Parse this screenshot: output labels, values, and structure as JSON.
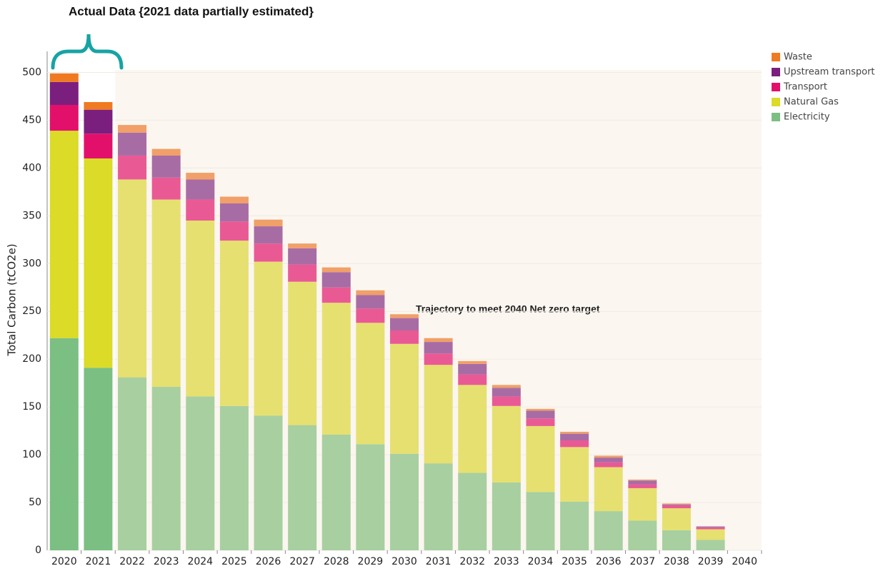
{
  "chart_data": {
    "type": "stacked_bar",
    "title": "Actual Data {2021 data partially estimated}",
    "annotation": "Trajectory to meet 2040 Net zero target",
    "ylabel": "Total Carbon (tCO2e)",
    "categories": [
      "2020",
      "2021",
      "2022",
      "2023",
      "2024",
      "2025",
      "2026",
      "2027",
      "2028",
      "2029",
      "2030",
      "2031",
      "2032",
      "2033",
      "2034",
      "2035",
      "2036",
      "2037",
      "2038",
      "2039",
      "2040"
    ],
    "estimate_start": "2022",
    "series": [
      {
        "name": "Electricity",
        "color": "#7bbf82",
        "projected_color": "#a8cfa0",
        "values": [
          222,
          191,
          181,
          171,
          161,
          151,
          141,
          131,
          121,
          111,
          101,
          91,
          81,
          71,
          61,
          51,
          41,
          31,
          21,
          11,
          0
        ]
      },
      {
        "name": "Natural Gas",
        "color": "#dbdb28",
        "projected_color": "#e6e070",
        "values": [
          217,
          219,
          207,
          196,
          184,
          173,
          161,
          150,
          138,
          127,
          115,
          103,
          92,
          80,
          69,
          57,
          46,
          34,
          23,
          11,
          0
        ]
      },
      {
        "name": "Transport",
        "color": "#e3106b",
        "projected_color": "#e95a95",
        "values": [
          27,
          26,
          25,
          23,
          22,
          20,
          19,
          18,
          16,
          15,
          14,
          12,
          11,
          10,
          8,
          7,
          5,
          4,
          3,
          2,
          0
        ]
      },
      {
        "name": "Upstream transport",
        "color": "#7b1f7f",
        "projected_color": "#a86ca5",
        "values": [
          24,
          25,
          24,
          23,
          21,
          19,
          18,
          17,
          16,
          14,
          13,
          12,
          11,
          9,
          8,
          7,
          5,
          4,
          1,
          1,
          0
        ]
      },
      {
        "name": "Waste",
        "color": "#f07a21",
        "projected_color": "#f0a068",
        "values": [
          9,
          8,
          8,
          7,
          7,
          7,
          7,
          5,
          5,
          5,
          4,
          4,
          3,
          3,
          2,
          2,
          2,
          1,
          1,
          0,
          0
        ]
      }
    ],
    "ylim": [
      0,
      522
    ],
    "yticks": [
      0,
      50,
      100,
      150,
      200,
      250,
      300,
      350,
      400,
      450,
      500
    ],
    "grid": true
  }
}
